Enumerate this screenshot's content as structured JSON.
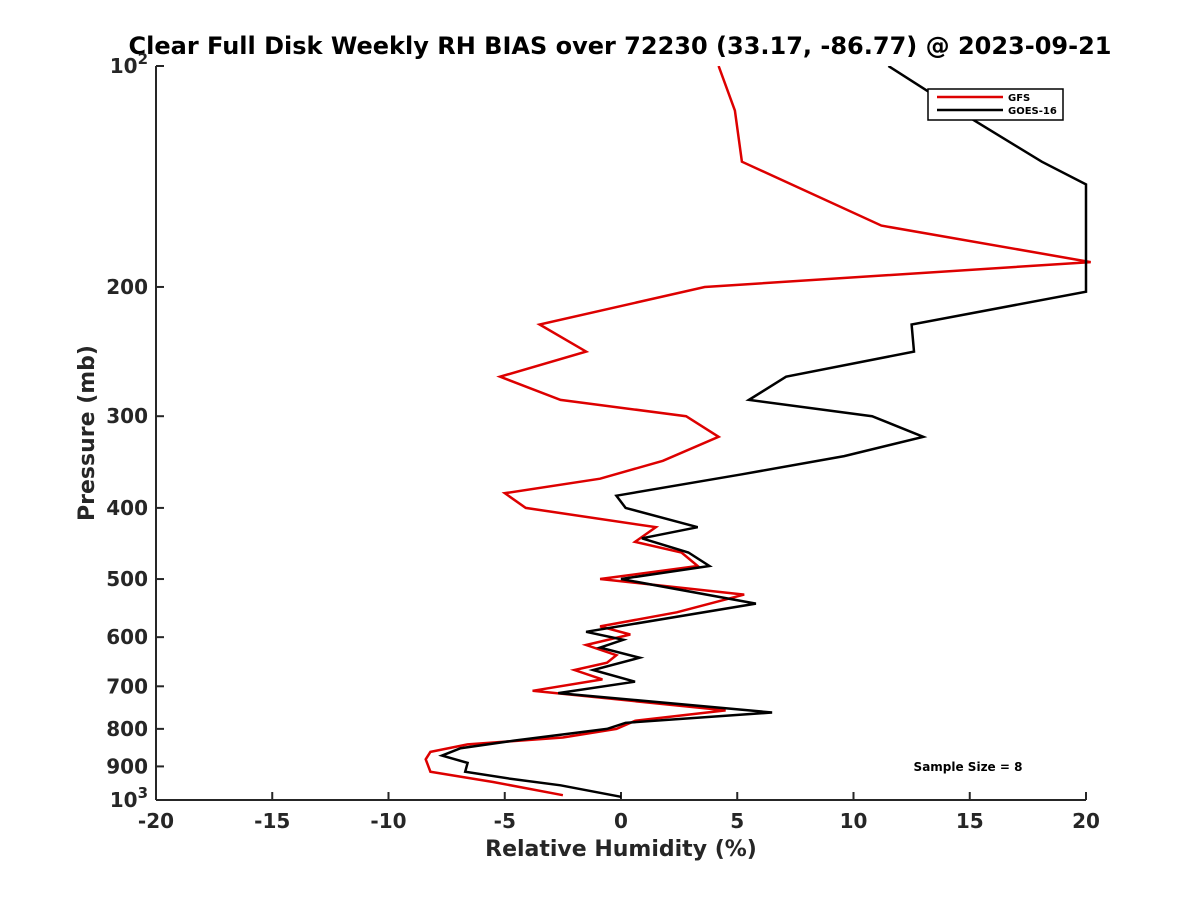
{
  "chart_data": {
    "type": "line",
    "title": "Clear Full Disk Weekly RH BIAS over 72230 (33.17, -86.77) @ 2023-09-21",
    "xlabel": "Relative Humidity (%)",
    "ylabel": "Pressure (mb)",
    "xlim": [
      -20,
      20
    ],
    "ylim": [
      100,
      1000
    ],
    "yscale": "log",
    "yreversed": true,
    "grid": false,
    "legend_position": "top-right",
    "x_ticks": [
      {
        "value": -20,
        "label": "-20"
      },
      {
        "value": -15,
        "label": "-15"
      },
      {
        "value": -10,
        "label": "-10"
      },
      {
        "value": -5,
        "label": "-5"
      },
      {
        "value": 0,
        "label": "0"
      },
      {
        "value": 5,
        "label": "5"
      },
      {
        "value": 10,
        "label": "10"
      },
      {
        "value": 15,
        "label": "15"
      },
      {
        "value": 20,
        "label": "20"
      }
    ],
    "y_ticks": [
      {
        "value": 100,
        "base": "10",
        "exp": "2"
      },
      {
        "value": 200,
        "label": "200"
      },
      {
        "value": 300,
        "label": "300"
      },
      {
        "value": 400,
        "label": "400"
      },
      {
        "value": 500,
        "label": "500"
      },
      {
        "value": 600,
        "label": "600"
      },
      {
        "value": 700,
        "label": "700"
      },
      {
        "value": 800,
        "label": "800"
      },
      {
        "value": 900,
        "label": "900"
      },
      {
        "value": 1000,
        "base": "10",
        "exp": "3"
      }
    ],
    "series": [
      {
        "name": "GFS",
        "color": "#dd0000",
        "points": [
          [
            4.2,
            100
          ],
          [
            4.9,
            115
          ],
          [
            5.2,
            135
          ],
          [
            11.2,
            165
          ],
          [
            20.2,
            185
          ],
          [
            3.6,
            200
          ],
          [
            -3.5,
            225
          ],
          [
            -1.5,
            245
          ],
          [
            -5.2,
            265
          ],
          [
            -2.6,
            285
          ],
          [
            2.8,
            300
          ],
          [
            4.2,
            320
          ],
          [
            1.8,
            345
          ],
          [
            -0.9,
            365
          ],
          [
            -5.0,
            382
          ],
          [
            -4.1,
            400
          ],
          [
            1.5,
            425
          ],
          [
            0.6,
            445
          ],
          [
            2.6,
            460
          ],
          [
            3.3,
            480
          ],
          [
            -0.9,
            500
          ],
          [
            5.3,
            525
          ],
          [
            2.4,
            555
          ],
          [
            -0.9,
            580
          ],
          [
            0.4,
            595
          ],
          [
            -1.5,
            615
          ],
          [
            -0.2,
            635
          ],
          [
            -0.6,
            650
          ],
          [
            -2.0,
            665
          ],
          [
            -0.8,
            685
          ],
          [
            -3.8,
            710
          ],
          [
            4.5,
            755
          ],
          [
            0.6,
            780
          ],
          [
            -0.2,
            800
          ],
          [
            -2.5,
            822
          ],
          [
            -6.6,
            840
          ],
          [
            -8.2,
            860
          ],
          [
            -8.4,
            880
          ],
          [
            -8.2,
            915
          ],
          [
            -5.5,
            945
          ],
          [
            -2.5,
            985
          ]
        ]
      },
      {
        "name": "GOES-16",
        "color": "#000000",
        "points": [
          [
            11.5,
            100
          ],
          [
            14.5,
            115
          ],
          [
            18.1,
            135
          ],
          [
            20.0,
            145
          ],
          [
            20.0,
            203
          ],
          [
            12.5,
            225
          ],
          [
            12.6,
            245
          ],
          [
            7.1,
            265
          ],
          [
            5.5,
            285
          ],
          [
            10.8,
            300
          ],
          [
            13.0,
            320
          ],
          [
            9.6,
            340
          ],
          [
            5.2,
            360
          ],
          [
            -0.2,
            385
          ],
          [
            0.2,
            400
          ],
          [
            3.3,
            425
          ],
          [
            0.9,
            440
          ],
          [
            2.9,
            460
          ],
          [
            3.8,
            480
          ],
          [
            0.0,
            500
          ],
          [
            5.8,
            540
          ],
          [
            -1.5,
            590
          ],
          [
            0.1,
            605
          ],
          [
            -0.9,
            620
          ],
          [
            0.8,
            640
          ],
          [
            -1.2,
            665
          ],
          [
            0.6,
            690
          ],
          [
            -2.7,
            715
          ],
          [
            6.5,
            760
          ],
          [
            0.2,
            785
          ],
          [
            -0.6,
            800
          ],
          [
            -4.6,
            830
          ],
          [
            -6.9,
            850
          ],
          [
            -7.7,
            870
          ],
          [
            -6.6,
            890
          ],
          [
            -6.7,
            915
          ],
          [
            -4.8,
            935
          ],
          [
            -2.6,
            955
          ],
          [
            0.0,
            990
          ]
        ]
      }
    ],
    "annotation": "Sample Size = 8"
  }
}
